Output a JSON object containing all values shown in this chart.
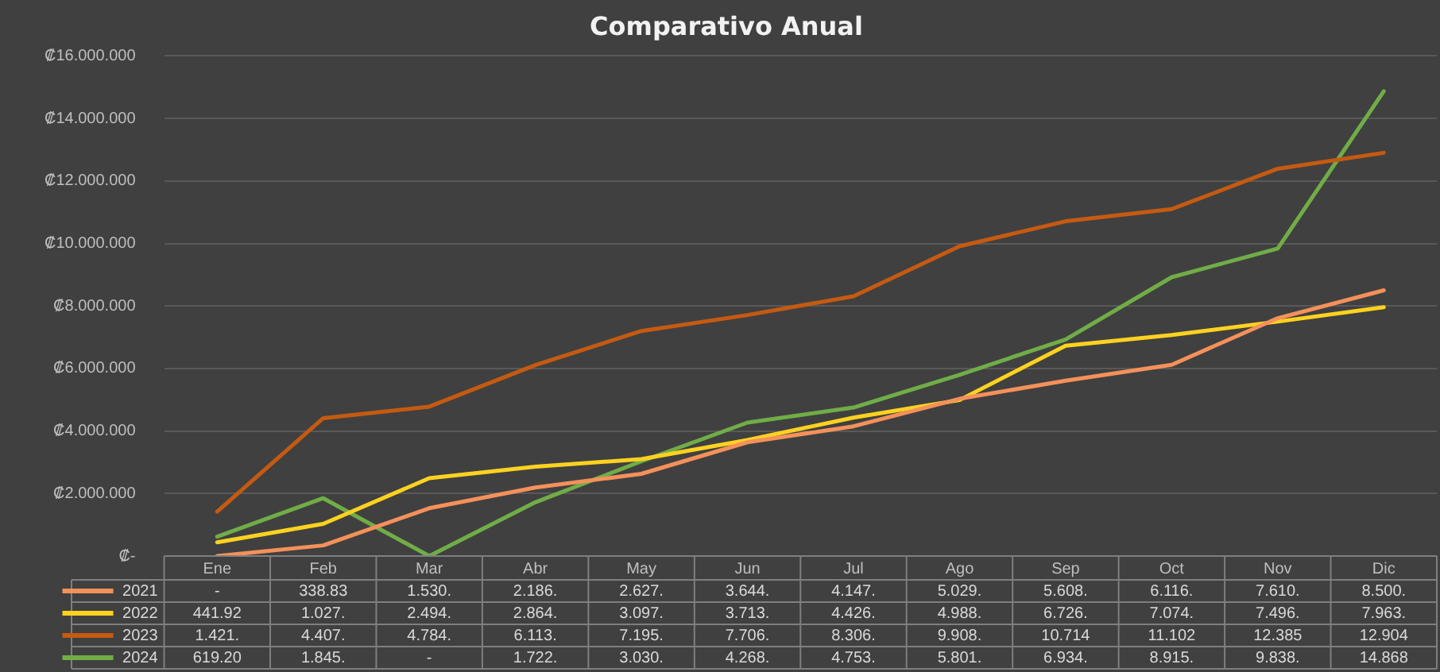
{
  "chart_data": {
    "type": "line",
    "title": "Comparativo Anual",
    "categories": [
      "Ene",
      "Feb",
      "Mar",
      "Abr",
      "May",
      "Jun",
      "Jul",
      "Ago",
      "Sep",
      "Oct",
      "Nov",
      "Dic"
    ],
    "series": [
      {
        "name": "2021",
        "color": "#f4915a",
        "values": [
          0,
          340000,
          1530000,
          2190000,
          2630000,
          3640000,
          4150000,
          5030000,
          5610000,
          6120000,
          7610000,
          8500000
        ]
      },
      {
        "name": "2022",
        "color": "#ffd21f",
        "values": [
          440000,
          1030000,
          2490000,
          2860000,
          3100000,
          3710000,
          4430000,
          4990000,
          6730000,
          7070000,
          7500000,
          7960000
        ]
      },
      {
        "name": "2023",
        "color": "#c55a11",
        "values": [
          1420000,
          4410000,
          4780000,
          6110000,
          7200000,
          7710000,
          8310000,
          9910000,
          10710000,
          11100000,
          12390000,
          12900000
        ]
      },
      {
        "name": "2024",
        "color": "#70ad47",
        "values": [
          620000,
          1850000,
          0,
          1720000,
          3030000,
          4270000,
          4750000,
          5800000,
          6930000,
          8920000,
          9840000,
          14870000
        ]
      }
    ],
    "annotations": [
      "-",
      "338.83",
      "1.530.",
      "2.186.",
      "2.627.",
      "3.644.",
      "4.147.",
      "5.029.",
      "5.608.",
      "6.116.",
      "7.610.",
      "8.500.",
      "441.92",
      "1.027.",
      "2.494.",
      "2.864.",
      "3.097.",
      "3.713.",
      "4.426.",
      "4.988.",
      "6.726.",
      "7.074.",
      "7.496.",
      "7.963.",
      "1.421.",
      "4.407.",
      "4.784.",
      "6.113.",
      "7.195.",
      "7.706.",
      "8.306.",
      "9.908.",
      "10.714",
      "11.102",
      "12.385",
      "12.904",
      "619.20",
      "1.845.",
      "-",
      "1.722.",
      "3.030.",
      "4.268.",
      "4.753.",
      "5.801.",
      "6.934.",
      "8.915.",
      "9.838.",
      "14.868"
    ],
    "ylim": [
      0,
      16000000
    ],
    "yticks": [
      {
        "value": 0,
        "label": "₡-"
      },
      {
        "value": 2000000,
        "label": "₡2.000.000"
      },
      {
        "value": 4000000,
        "label": "₡4.000.000"
      },
      {
        "value": 6000000,
        "label": "₡6.000.000"
      },
      {
        "value": 8000000,
        "label": "₡8.000.000"
      },
      {
        "value": 10000000,
        "label": "₡10.000.000"
      },
      {
        "value": 12000000,
        "label": "₡12.000.000"
      },
      {
        "value": 14000000,
        "label": "₡14.000.000"
      },
      {
        "value": 16000000,
        "label": "₡16.000.000"
      }
    ],
    "grid": "y",
    "legend": "bottom",
    "marker": "none",
    "line_style": "solid"
  }
}
